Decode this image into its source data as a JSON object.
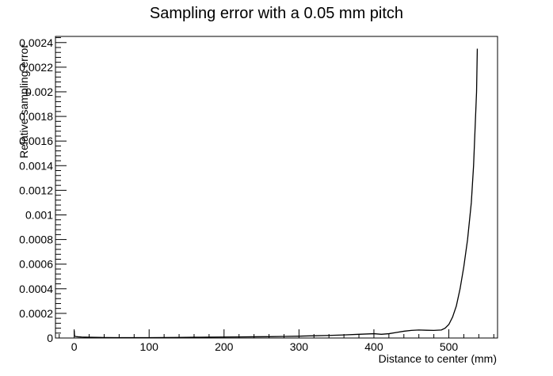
{
  "chart_data": {
    "type": "line",
    "title": "Sampling error with a 0.05 mm pitch",
    "xlabel": "Distance to center (mm)",
    "ylabel": "Relative sampling error",
    "xlim": [
      -25,
      565
    ],
    "ylim": [
      0,
      0.00245
    ],
    "grid": false,
    "x_ticks": [
      0,
      100,
      200,
      300,
      400,
      500
    ],
    "x_tick_labels": [
      "0",
      "100",
      "200",
      "300",
      "400",
      "500"
    ],
    "y_ticks": [
      0,
      0.0002,
      0.0004,
      0.0006,
      0.0008,
      0.001,
      0.0012,
      0.0014,
      0.0016,
      0.0018,
      0.002,
      0.0022,
      0.0024
    ],
    "y_tick_labels": [
      "0",
      "0.0002",
      "0.0004",
      "0.0006",
      "0.0008",
      "0.001",
      "0.0012",
      "0.0014",
      "0.0016",
      "0.0018",
      "0.002",
      "0.0022",
      "0.0024"
    ],
    "series": [
      {
        "color": "#000000",
        "x": [
          0,
          0.5,
          2,
          5,
          10,
          20,
          40,
          60,
          80,
          100,
          120,
          140,
          160,
          180,
          200,
          220,
          240,
          260,
          280,
          300,
          320,
          340,
          360,
          380,
          400,
          410,
          420,
          430,
          440,
          450,
          460,
          470,
          480,
          490,
          495,
          500,
          505,
          510,
          515,
          520,
          525,
          530,
          533,
          535,
          537,
          538
        ],
        "y": [
          6e-05,
          1.5e-05,
          1.2e-05,
          1e-05,
          8e-06,
          6e-06,
          4e-06,
          3e-06,
          3e-06,
          3e-06,
          4e-06,
          5e-06,
          6e-06,
          7e-06,
          8e-06,
          9e-06,
          1e-05,
          1.1e-05,
          1.3e-05,
          1.5e-05,
          1.8e-05,
          2.1e-05,
          2.5e-05,
          3e-05,
          3.5e-05,
          3e-05,
          3.5e-05,
          4.5e-05,
          5.5e-05,
          6.2e-05,
          6.5e-05,
          6.3e-05,
          6.2e-05,
          6.5e-05,
          8e-05,
          0.00011,
          0.00017,
          0.00026,
          0.0004,
          0.00058,
          0.0008,
          0.0011,
          0.0014,
          0.0017,
          0.002,
          0.00235
        ]
      }
    ]
  }
}
